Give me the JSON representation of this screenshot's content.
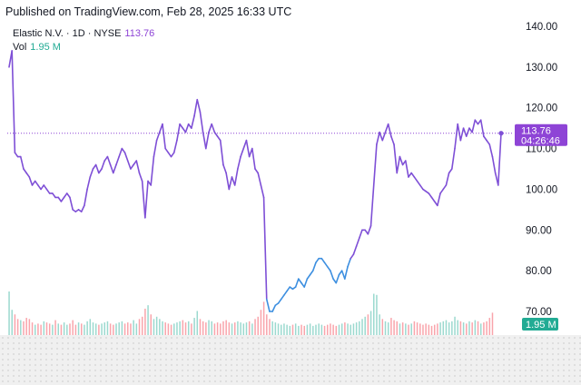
{
  "header": {
    "published": "Published on TradingView.com, Feb 28, 2025 16:33 UTC"
  },
  "legend": {
    "symbol": "Elastic N.V. · 1D · NYSE",
    "last_price": "113.76",
    "vol_label": "Vol",
    "vol_value": "1.95 M"
  },
  "colors": {
    "line": "#7e4fd6",
    "line_low": "#3d8fe0",
    "vol_up": "#22ab94",
    "vol_down": "#f23645"
  },
  "chart_data": {
    "type": "line",
    "title": "Elastic N.V. · 1D · NYSE",
    "ylim": [
      62,
      143
    ],
    "yticks": [
      70,
      80,
      90,
      100,
      110,
      120,
      130,
      140
    ],
    "ytick_labels": [
      "70.00",
      "80.00",
      "90.00",
      "100.00",
      "110.00",
      "120.00",
      "130.00",
      "140.00"
    ],
    "last_price_label": "113.76",
    "countdown_label": "04:26:46",
    "volume_label": "1.95 M",
    "series": [
      {
        "values": [
          130,
          134,
          109,
          108,
          108,
          105,
          104,
          103,
          101,
          102,
          101,
          100,
          101,
          100,
          99,
          99,
          98,
          98,
          97,
          98,
          99,
          98,
          95,
          94.5,
          95,
          94.5,
          96,
          100,
          103,
          105,
          106,
          104,
          105,
          107,
          108,
          106,
          104,
          106,
          108,
          110,
          109,
          107,
          105,
          106,
          107,
          104,
          102,
          93,
          102,
          101,
          108,
          112,
          114,
          116,
          110,
          109,
          108,
          109,
          112,
          116,
          115,
          114,
          116,
          115,
          118,
          122,
          119,
          114,
          110,
          114,
          116,
          114,
          113,
          112,
          106,
          104,
          100,
          103,
          101,
          105,
          108,
          110,
          112,
          108,
          110,
          105,
          104,
          101,
          98,
          73,
          70,
          70,
          71.5,
          72,
          73,
          74,
          75,
          76,
          75.5,
          76,
          78,
          77,
          76,
          78,
          79,
          80,
          82,
          83,
          83,
          82,
          81,
          80,
          78,
          77,
          79,
          80,
          78,
          81,
          83,
          84,
          86,
          88,
          90,
          90,
          89,
          91,
          101,
          111,
          114,
          112,
          114,
          116,
          113,
          111,
          104,
          108,
          106,
          107,
          103,
          104,
          103,
          102,
          101,
          100,
          99.5,
          99,
          98,
          97,
          96,
          99,
          100,
          101,
          104,
          105,
          110,
          116,
          112,
          115,
          113,
          115,
          114,
          117,
          116,
          117,
          113,
          112,
          111,
          108,
          104,
          101,
          113.76
        ],
        "low_segment": [
          89,
          118
        ]
      }
    ],
    "volume": [
      3.8,
      2.2,
      1.8,
      1.4,
      1.3,
      1.2,
      1.5,
      1.4,
      1.1,
      0.9,
      1.0,
      0.9,
      1.2,
      1.1,
      1.0,
      0.9,
      1.3,
      1.0,
      0.9,
      1.1,
      0.9,
      1.0,
      1.3,
      0.9,
      1.1,
      1.0,
      0.9,
      1.2,
      1.4,
      1.1,
      1.0,
      0.9,
      1.0,
      1.1,
      1.2,
      1.0,
      0.9,
      1.0,
      1.1,
      1.2,
      1.0,
      1.1,
      1.0,
      1.3,
      1.0,
      1.4,
      1.6,
      2.3,
      2.6,
      1.8,
      1.4,
      1.6,
      1.4,
      1.2,
      1.1,
      1.0,
      0.9,
      1.0,
      1.1,
      1.2,
      1.3,
      1.1,
      1.2,
      1.0,
      1.5,
      2.1,
      1.4,
      1.2,
      1.1,
      1.3,
      1.2,
      1.0,
      1.1,
      1.0,
      1.2,
      1.3,
      1.1,
      1.0,
      1.1,
      1.2,
      1.1,
      1.0,
      1.1,
      1.2,
      1.0,
      1.4,
      1.6,
      2.2,
      2.9,
      1.8,
      1.4,
      1.2,
      1.1,
      1.0,
      0.9,
      1.0,
      0.9,
      0.8,
      0.9,
      1.0,
      0.8,
      0.9,
      0.8,
      0.9,
      1.0,
      0.8,
      0.9,
      1.0,
      0.9,
      0.8,
      0.9,
      1.0,
      0.9,
      0.8,
      0.9,
      1.0,
      1.1,
      1.0,
      0.9,
      1.0,
      1.1,
      1.2,
      1.4,
      1.6,
      1.8,
      2.1,
      3.6,
      3.5,
      1.8,
      1.4,
      1.2,
      1.1,
      1.5,
      1.3,
      1.2,
      1.0,
      1.1,
      1.0,
      0.9,
      1.0,
      1.2,
      1.1,
      1.0,
      0.9,
      1.0,
      0.9,
      0.8,
      0.9,
      1.0,
      1.1,
      1.2,
      1.3,
      1.1,
      1.2,
      1.6,
      1.3,
      1.2,
      1.1,
      1.0,
      1.2,
      1.1,
      1.3,
      1.2,
      1.0,
      1.1,
      1.2,
      1.5,
      1.95
    ]
  }
}
